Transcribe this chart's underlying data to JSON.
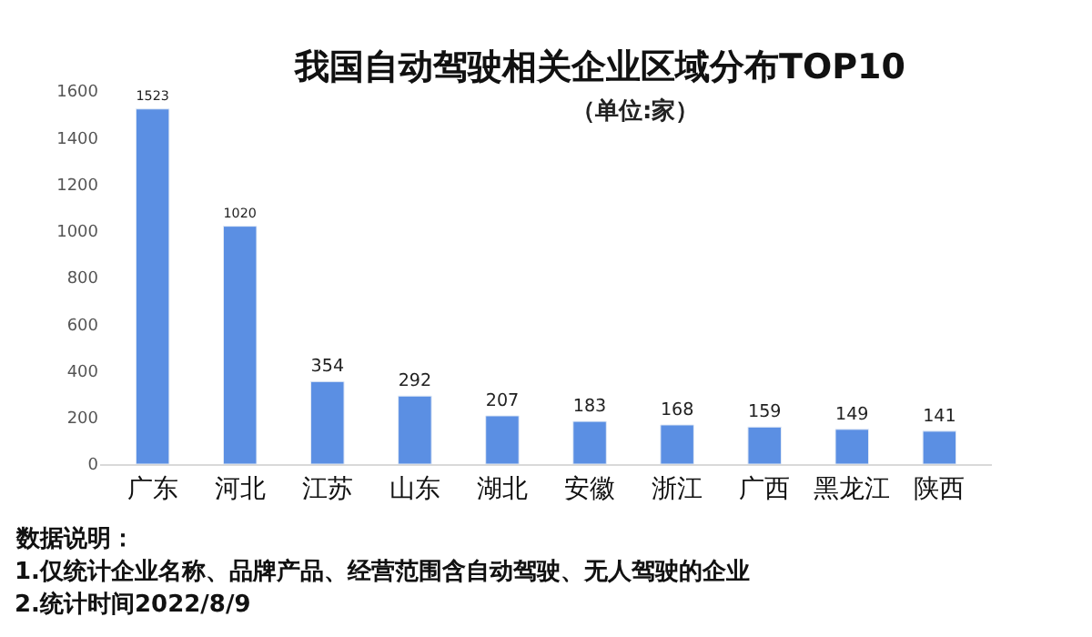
{
  "chart_data": {
    "type": "bar",
    "title": "我国自动驾驶相关企业区域分布TOP10",
    "subtitle": "（单位:家）",
    "categories": [
      "广东",
      "河北",
      "江苏",
      "山东",
      "湖北",
      "安徽",
      "浙江",
      "广西",
      "黑龙江",
      "陕西"
    ],
    "values": [
      1523,
      1020,
      354,
      292,
      207,
      183,
      168,
      159,
      149,
      141
    ],
    "color": "#5b8fe3",
    "data_labels": true,
    "ylim": [
      0,
      1600
    ],
    "yticks": [
      0,
      200,
      400,
      600,
      800,
      1000,
      1200,
      1400,
      1600
    ],
    "annotations": [
      "数据说明：",
      "1.仅统计企业名称、品牌产品、经营范围含自动驾驶、无人驾驶的企业",
      "2.统计时间2022/8/9"
    ]
  }
}
